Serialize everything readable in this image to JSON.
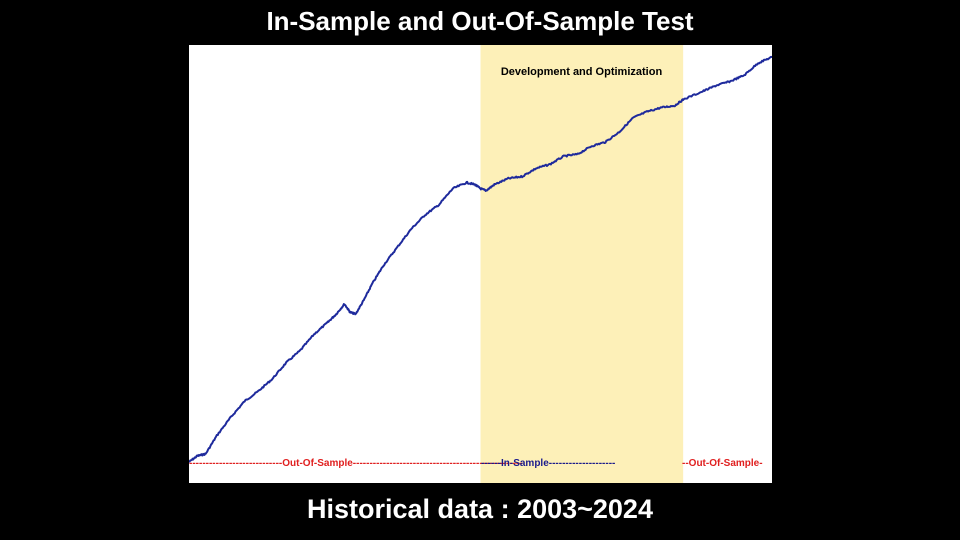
{
  "title": "In-Sample and Out-Of-Sample Test",
  "footer": "Historical data : 2003~2024",
  "chart_data": {
    "type": "line",
    "title": "In-Sample and Out-Of-Sample Test",
    "xlabel": "",
    "ylabel": "",
    "grid": false,
    "x_range": [
      2003,
      2024
    ],
    "band": {
      "label": "Development and Optimization",
      "x_start": 2013.5,
      "x_end": 2020.8,
      "color": "#fdf0b8"
    },
    "line_color": "#1e2a9c",
    "series": [
      {
        "x": [
          2003.0,
          2003.3,
          2003.6,
          2004.0,
          2004.5,
          2005.0,
          2005.5,
          2006.0,
          2006.5,
          2007.0,
          2007.5,
          2008.0,
          2008.3,
          2008.6,
          2008.8,
          2009.0,
          2009.3,
          2009.6,
          2010.0,
          2010.5,
          2011.0,
          2011.5,
          2012.0,
          2012.5,
          2013.0,
          2013.3,
          2013.5,
          2013.7,
          2014.0,
          2014.5,
          2015.0,
          2015.5,
          2016.0,
          2016.5,
          2017.0,
          2017.5,
          2018.0,
          2018.5,
          2019.0,
          2019.5,
          2020.0,
          2020.5,
          2020.8,
          2021.5,
          2022.0,
          2022.5,
          2023.0,
          2023.5,
          2024.0
        ],
        "y": [
          0.0,
          1.5,
          2.0,
          6.5,
          11.0,
          15.0,
          17.5,
          20.5,
          24.5,
          27.5,
          31.5,
          34.5,
          36.5,
          39.0,
          37.0,
          36.5,
          40.0,
          44.0,
          48.5,
          53.0,
          57.5,
          61.0,
          63.5,
          67.5,
          69.0,
          68.5,
          67.5,
          67.0,
          68.5,
          70.0,
          70.5,
          72.5,
          73.5,
          75.5,
          76.0,
          78.0,
          79.0,
          81.5,
          85.0,
          86.5,
          87.5,
          88.0,
          89.5,
          91.5,
          93.0,
          94.0,
          95.5,
          98.5,
          100.0
        ]
      }
    ],
    "segments": [
      {
        "label": "----------------------------Out-Of-Sample---------------------------------------------------",
        "x_start": 2003.0,
        "x_end": 2013.5,
        "color": "#e02020"
      },
      {
        "label": "------In-Sample--------------------",
        "x_start": 2013.5,
        "x_end": 2020.8,
        "color": "#1a1a8c"
      },
      {
        "label": " --Out-Of-Sample-",
        "x_start": 2020.8,
        "x_end": 2024.0,
        "color": "#e02020"
      }
    ]
  }
}
